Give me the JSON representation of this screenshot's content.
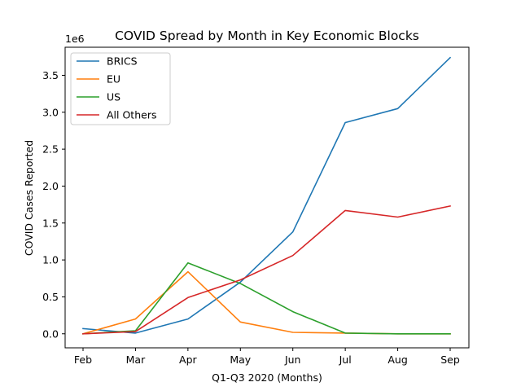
{
  "chart_data": {
    "type": "line",
    "title": "COVID Spread by Month in Key Economic Blocks",
    "xlabel": "Q1-Q3 2020 (Months)",
    "ylabel": "COVID Cases Reported",
    "y_multiplier": "1e6",
    "categories": [
      "Feb",
      "Mar",
      "Apr",
      "May",
      "Jun",
      "Jul",
      "Aug",
      "Sep"
    ],
    "ylim": [
      -0.19,
      3.88
    ],
    "yticks": [
      0.0,
      0.5,
      1.0,
      1.5,
      2.0,
      2.5,
      3.0,
      3.5
    ],
    "ytick_labels": [
      "0.0",
      "0.5",
      "1.0",
      "1.5",
      "2.0",
      "2.5",
      "3.0",
      "3.5"
    ],
    "grid": false,
    "legend_position": "top-left",
    "series": [
      {
        "name": "BRICS",
        "color": "#1f77b4",
        "values": [
          0.07,
          0.01,
          0.2,
          0.7,
          1.38,
          2.86,
          3.05,
          3.74
        ]
      },
      {
        "name": "EU",
        "color": "#ff7f0e",
        "values": [
          0.0,
          0.2,
          0.84,
          0.16,
          0.02,
          0.01,
          0.0,
          0.0
        ]
      },
      {
        "name": "US",
        "color": "#2ca02c",
        "values": [
          0.0,
          0.04,
          0.96,
          0.68,
          0.3,
          0.01,
          0.0,
          0.0
        ]
      },
      {
        "name": "All Others",
        "color": "#d62728",
        "values": [
          0.0,
          0.03,
          0.49,
          0.73,
          1.06,
          1.67,
          1.58,
          1.73
        ]
      }
    ]
  }
}
